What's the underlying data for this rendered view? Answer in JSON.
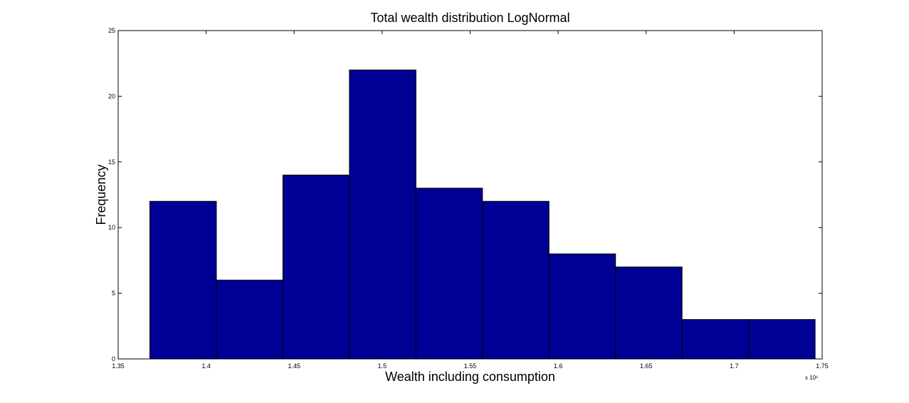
{
  "chart_data": {
    "type": "bar",
    "title": "Total wealth distribution LogNormal",
    "xlabel": "Wealth including consumption",
    "ylabel": "Frequency",
    "x_multiplier": "x 10⁶",
    "xlim": [
      1.35,
      1.75
    ],
    "ylim": [
      0,
      25
    ],
    "xticks": [
      1.35,
      1.4,
      1.45,
      1.5,
      1.55,
      1.6,
      1.65,
      1.7,
      1.75
    ],
    "xtick_labels": [
      "1.35",
      "1.4",
      "1.45",
      "1.5",
      "1.55",
      "1.6",
      "1.65",
      "1.7",
      "1.75"
    ],
    "yticks": [
      0,
      5,
      10,
      15,
      20,
      25
    ],
    "ytick_labels": [
      "0",
      "5",
      "10",
      "15",
      "20",
      "25"
    ],
    "bin_edges": [
      1.368,
      1.4058,
      1.4436,
      1.4814,
      1.5192,
      1.557,
      1.5948,
      1.6326,
      1.6704,
      1.7082,
      1.746
    ],
    "values": [
      12,
      6,
      14,
      22,
      13,
      12,
      8,
      7,
      3,
      3
    ],
    "bar_color": "#000094",
    "grid": false
  }
}
